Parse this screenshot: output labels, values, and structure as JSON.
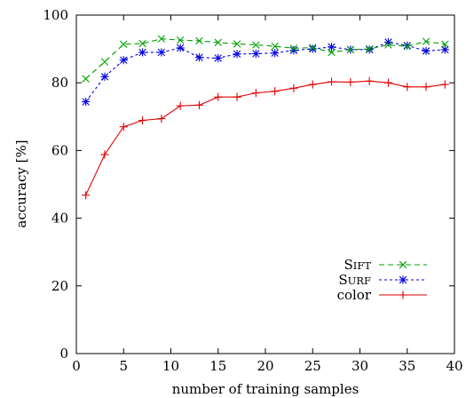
{
  "chart_data": {
    "type": "line",
    "xlabel": "number of training samples",
    "ylabel": "accuracy [%]",
    "xlim": [
      0,
      40
    ],
    "ylim": [
      0,
      100
    ],
    "xticks": [
      0,
      5,
      10,
      15,
      20,
      25,
      30,
      35,
      40
    ],
    "yticks": [
      0,
      20,
      40,
      60,
      80,
      100
    ],
    "grid": false,
    "legend_position": "bottom-right",
    "x": [
      1,
      3,
      5,
      7,
      9,
      11,
      13,
      15,
      17,
      19,
      21,
      23,
      25,
      27,
      29,
      31,
      33,
      35,
      37,
      39
    ],
    "series": [
      {
        "name": "Sift",
        "color": "#00a000",
        "marker": "x",
        "dash": "dashed",
        "values": [
          81.2,
          86.2,
          91.4,
          91.6,
          93.0,
          92.6,
          92.4,
          91.9,
          91.5,
          91.2,
          90.8,
          90.2,
          90.4,
          89.0,
          89.8,
          90.0,
          91.2,
          90.8,
          92.2,
          91.4
        ]
      },
      {
        "name": "Surf",
        "color": "#0000e0",
        "marker": "asterisk",
        "dash": "dotted",
        "values": [
          74.4,
          81.8,
          86.7,
          89.0,
          89.0,
          90.3,
          87.5,
          87.3,
          88.5,
          88.6,
          88.8,
          89.6,
          90.0,
          90.6,
          89.8,
          89.8,
          92.0,
          91.0,
          89.4,
          89.8
        ]
      },
      {
        "name": "color",
        "color": "#e00000",
        "marker": "plus",
        "dash": "solid",
        "values": [
          46.8,
          58.8,
          67.0,
          68.9,
          69.4,
          73.2,
          73.4,
          75.8,
          75.8,
          77.0,
          77.5,
          78.4,
          79.5,
          80.3,
          80.2,
          80.5,
          80.0,
          78.8,
          78.8,
          79.5
        ]
      }
    ]
  }
}
